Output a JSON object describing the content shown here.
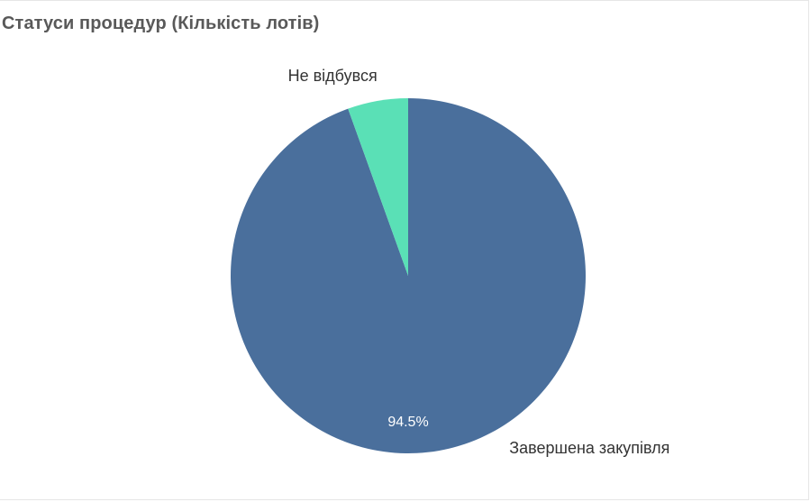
{
  "chart_data": {
    "type": "pie",
    "title": "Статуси процедур (Кількість лотів)",
    "categories": [
      "Завершена закупівля",
      "Не відбувся"
    ],
    "values": [
      94.5,
      5.5
    ],
    "units": "%",
    "colors": [
      "#4a6f9c",
      "#5ae0b6"
    ],
    "data_labels": [
      "94.5%",
      ""
    ],
    "legend": "none"
  }
}
